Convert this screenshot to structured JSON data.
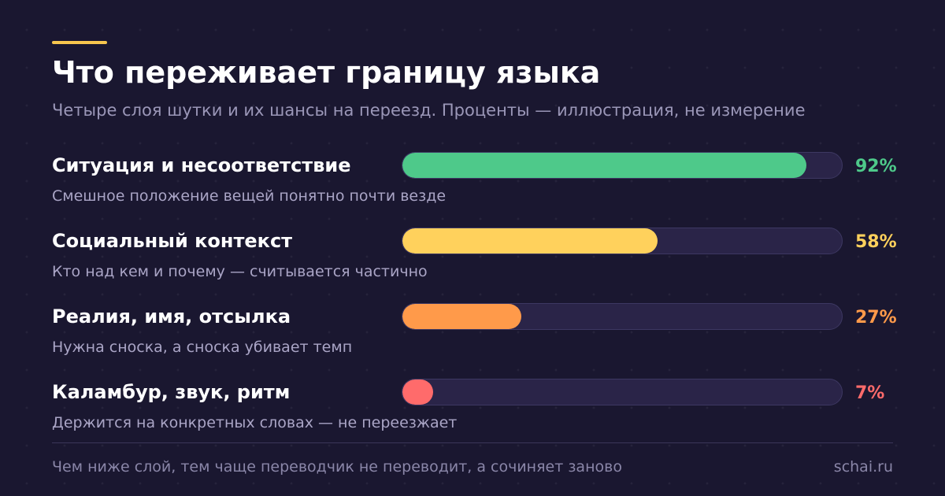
{
  "header": {
    "title": "Что переживает границу языка",
    "subtitle": "Четыре слоя шутки и их шансы на переезд. Проценты — иллюстрация, не измерение",
    "accent_color": "#f7c64e"
  },
  "chart_data": {
    "type": "bar",
    "orientation": "horizontal",
    "title": "Что переживает границу языка",
    "subtitle": "Четыре слоя шутки и их шансы на переезд. Проценты — иллюстрация, не измерение",
    "xlim": [
      0,
      100
    ],
    "grid": false,
    "categories": [
      "Ситуация и несоответствие",
      "Социальный контекст",
      "Реалия, имя, отсылка",
      "Каламбур, звук, ритм"
    ],
    "values": [
      92,
      58,
      27,
      7
    ],
    "value_labels": [
      "92%",
      "58%",
      "27%",
      "7%"
    ],
    "descriptions": [
      "Смешное положение вещей понятно почти везде",
      "Кто над кем и почему — считывается частично",
      "Нужна сноска, а сноска убивает темп",
      "Держится на конкретных словах — не переезжает"
    ],
    "colors": [
      "#4ec98a",
      "#ffd15c",
      "#ff9a4a",
      "#ff6b6b"
    ]
  },
  "footer": {
    "note": "Чем ниже слой, тем чаще переводчик не переводит, а сочиняет заново",
    "site": "schai.ru"
  }
}
